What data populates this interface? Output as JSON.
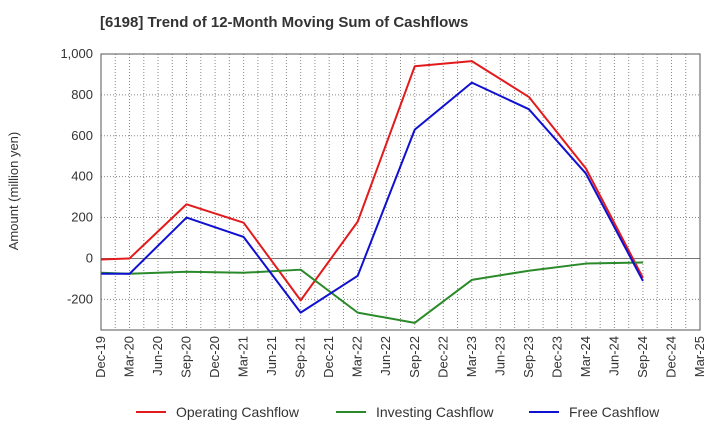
{
  "chart_data": {
    "type": "line",
    "title": "[6198]  Trend of 12-Month Moving Sum of Cashflows",
    "xlabel": "",
    "ylabel": "Amount (million yen)",
    "x": [
      "Dec-19",
      "Mar-20",
      "Jun-20",
      "Sep-20",
      "Dec-20",
      "Mar-21",
      "Jun-21",
      "Sep-21",
      "Dec-21",
      "Mar-22",
      "Jun-22",
      "Sep-22",
      "Dec-22",
      "Mar-23",
      "Jun-23",
      "Sep-23",
      "Dec-23",
      "Mar-24",
      "Jun-24",
      "Sep-24",
      "Dec-24",
      "Mar-25"
    ],
    "ylim": [
      -350,
      1000
    ],
    "yticks": [
      -200,
      0,
      200,
      400,
      600,
      800,
      1000
    ],
    "ytick_labels": [
      "-200",
      "0",
      "200",
      "400",
      "600",
      "800",
      "1,000"
    ],
    "grid": true,
    "legend_position": "bottom",
    "series": [
      {
        "name": "Operating Cashflow",
        "color": "#e31a1c",
        "values": [
          -5,
          0,
          null,
          265,
          null,
          175,
          null,
          -205,
          null,
          180,
          null,
          940,
          null,
          965,
          null,
          790,
          null,
          440,
          null,
          -95,
          null,
          null
        ]
      },
      {
        "name": "Investing Cashflow",
        "color": "#2a8a2a",
        "values": [
          -70,
          -75,
          null,
          -65,
          null,
          -70,
          null,
          -55,
          null,
          -265,
          null,
          -315,
          null,
          -105,
          null,
          -60,
          null,
          -25,
          null,
          -20,
          null,
          null
        ]
      },
      {
        "name": "Free Cashflow",
        "color": "#1010d0",
        "values": [
          -75,
          -75,
          null,
          200,
          null,
          105,
          null,
          -265,
          null,
          -85,
          null,
          630,
          null,
          860,
          null,
          730,
          null,
          415,
          null,
          -110,
          null,
          null
        ]
      }
    ]
  }
}
